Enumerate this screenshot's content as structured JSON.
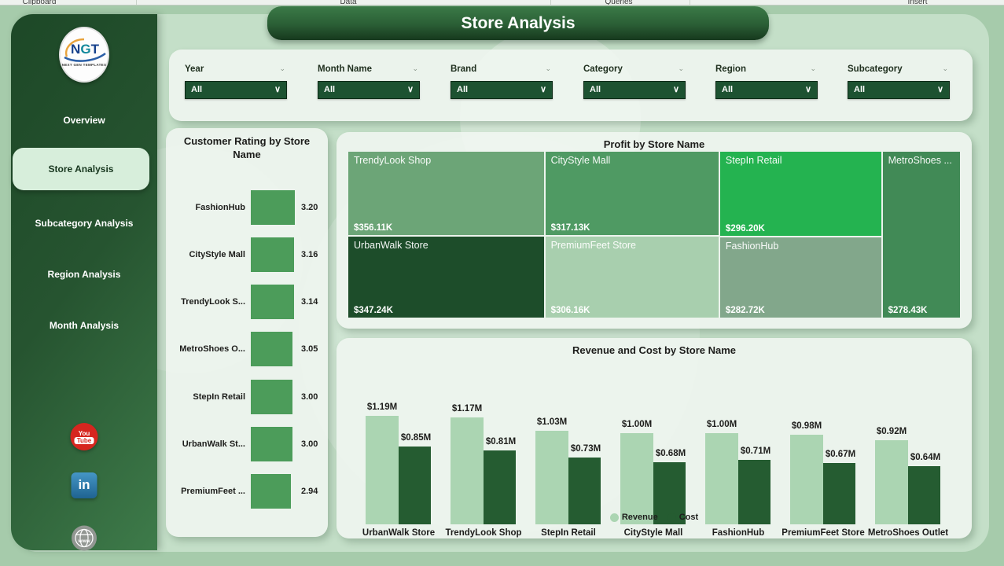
{
  "ribbon": {
    "groups": [
      "Clipboard",
      "Data",
      "Queries",
      "Insert"
    ]
  },
  "sidebar": {
    "logo": {
      "text": "NGT",
      "subtext": "NEXT GEN TEMPLATES"
    },
    "items": [
      {
        "label": "Overview",
        "active": false
      },
      {
        "label": "Store Analysis",
        "active": true
      },
      {
        "label": "Subcategory Analysis",
        "active": false
      },
      {
        "label": "Region Analysis",
        "active": false
      },
      {
        "label": "Month Analysis",
        "active": false
      }
    ],
    "social": {
      "youtube": {
        "line1": "You",
        "line2": "Tube"
      },
      "linkedin": {
        "label": "in"
      },
      "website": {
        "label": "www"
      }
    }
  },
  "header": {
    "title": "Store Analysis"
  },
  "filters": [
    {
      "label": "Year",
      "value": "All"
    },
    {
      "label": "Month Name",
      "value": "All"
    },
    {
      "label": "Brand",
      "value": "All"
    },
    {
      "label": "Category",
      "value": "All"
    },
    {
      "label": "Region",
      "value": "All"
    },
    {
      "label": "Subcategory",
      "value": "All"
    }
  ],
  "chart_data": [
    {
      "type": "bar",
      "orientation": "horizontal",
      "title": "Customer Rating by Store Name",
      "categories": [
        "FashionHub",
        "CityStyle Mall",
        "TrendyLook S...",
        "MetroShoes O...",
        "StepIn Retail",
        "UrbanWalk St...",
        "PremiumFeet ..."
      ],
      "values": [
        3.2,
        3.16,
        3.14,
        3.05,
        3.0,
        3.0,
        2.94
      ],
      "value_labels": [
        "3.20",
        "3.16",
        "3.14",
        "3.05",
        "3.00",
        "3.00",
        "2.94"
      ],
      "bar_color": "#4c9c5a",
      "xlim": [
        0,
        3.2
      ],
      "grid": false
    },
    {
      "type": "treemap",
      "title": "Profit by Store Name",
      "items": [
        {
          "name": "TrendyLook Shop",
          "value": 356.11,
          "value_label": "$356.11K",
          "color": "#6ca577"
        },
        {
          "name": "CityStyle Mall",
          "value": 317.13,
          "value_label": "$317.13K",
          "color": "#4f9a63"
        },
        {
          "name": "StepIn Retail",
          "value": 296.2,
          "value_label": "$296.20K",
          "color": "#24b350"
        },
        {
          "name": "MetroShoes ...",
          "value": 278.43,
          "value_label": "$278.43K",
          "color": "#418a56"
        },
        {
          "name": "UrbanWalk Store",
          "value": 347.24,
          "value_label": "$347.24K",
          "color": "#1d4d2a"
        },
        {
          "name": "PremiumFeet Store",
          "value": 306.16,
          "value_label": "$306.16K",
          "color": "#a8cfae"
        },
        {
          "name": "FashionHub",
          "value": 282.72,
          "value_label": "$282.72K",
          "color": "#82a78b"
        }
      ],
      "columns": [
        [
          0,
          4
        ],
        [
          1,
          5
        ],
        [
          2,
          6
        ],
        [
          3
        ]
      ]
    },
    {
      "type": "bar",
      "title": "Revenue and Cost by Store Name",
      "categories": [
        "UrbanWalk Store",
        "TrendyLook Shop",
        "StepIn Retail",
        "CityStyle Mall",
        "FashionHub",
        "PremiumFeet Store",
        "MetroShoes Outlet"
      ],
      "series": [
        {
          "name": "Revenue",
          "color": "#abd5b2",
          "values": [
            1.19,
            1.17,
            1.03,
            1.0,
            1.0,
            0.98,
            0.92
          ],
          "labels": [
            "$1.19M",
            "$1.17M",
            "$1.03M",
            "$1.00M",
            "$1.00M",
            "$0.98M",
            "$0.92M"
          ]
        },
        {
          "name": "Cost",
          "color": "#255c31",
          "values": [
            0.85,
            0.81,
            0.73,
            0.68,
            0.71,
            0.67,
            0.64
          ],
          "labels": [
            "$0.85M",
            "$0.81M",
            "$0.73M",
            "$0.68M",
            "$0.71M",
            "$0.67M",
            "$0.64M"
          ]
        }
      ],
      "ylim": [
        0,
        1.19
      ],
      "legend": [
        "Revenue",
        "Cost"
      ],
      "legend_position": "bottom",
      "grid": false
    }
  ],
  "colors": {
    "outer_bg": "#a6cbab",
    "panel_bg": "#c4dfc8",
    "sidebar_dark": "#1d4827",
    "accent_dark_green": "#1d5231",
    "active_pill": "#d7eedb",
    "revenue": "#abd5b2",
    "cost": "#255c31",
    "rating_bar": "#4c9c5a"
  }
}
